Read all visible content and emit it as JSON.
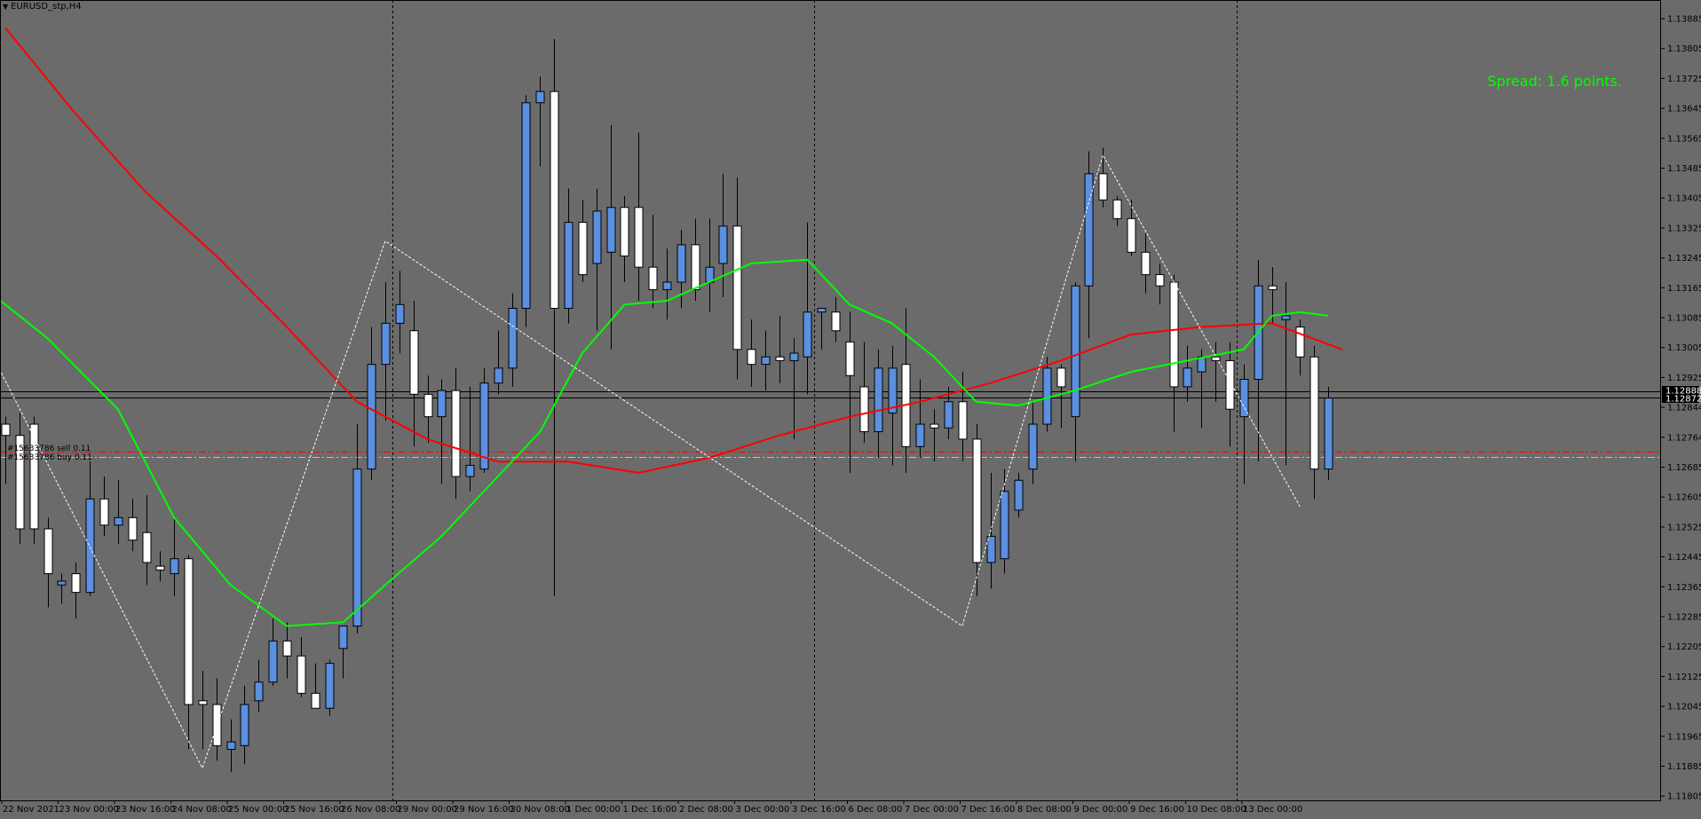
{
  "window": {
    "title": "EURUSD_stp,H4"
  },
  "indicator": {
    "spread_text": "Spread: 1.6 points."
  },
  "trade_labels": [
    {
      "text": "#15633786 sell 0.11"
    },
    {
      "text": "#15633786 buy 0.11"
    }
  ],
  "colors": {
    "background": "#6b6b6b",
    "bull_candle": "#5b8fe0",
    "bear_candle": "#ffffff",
    "ma_slow": "#ff0000",
    "ma_fast": "#00ff00",
    "zigzag": "#ffffff",
    "spread_text": "#00ff00",
    "price_badge": "#000000"
  },
  "icons": {
    "title_menu": "dropdown-triangle-icon"
  },
  "price_axis": {
    "labels": [
      "1.13885",
      "1.13805",
      "1.13725",
      "1.13645",
      "1.13565",
      "1.13485",
      "1.13405",
      "1.13325",
      "1.13245",
      "1.13165",
      "1.13085",
      "1.13005",
      "1.12925",
      "1.12844",
      "1.12764",
      "1.12685",
      "1.12605",
      "1.12525",
      "1.12445",
      "1.12365",
      "1.12285",
      "1.12205",
      "1.12125",
      "1.12045",
      "1.11965",
      "1.11885",
      "1.11805"
    ],
    "bid_price": "1.12888",
    "ask_price": "1.12872"
  },
  "time_axis": {
    "labels": [
      "22 Nov 2021",
      "23 Nov 00:00",
      "23 Nov 16:00",
      "24 Nov 08:00",
      "25 Nov 00:00",
      "25 Nov 16:00",
      "26 Nov 08:00",
      "29 Nov 00:00",
      "29 Nov 16:00",
      "30 Nov 08:00",
      "1 Dec 00:00",
      "1 Dec 16:00",
      "2 Dec 08:00",
      "3 Dec 00:00",
      "3 Dec 16:00",
      "6 Dec 08:00",
      "7 Dec 00:00",
      "7 Dec 16:00",
      "8 Dec 08:00",
      "9 Dec 00:00",
      "9 Dec 16:00",
      "10 Dec 08:00",
      "13 Dec 00:00"
    ]
  },
  "chart_data": {
    "type": "candlestick",
    "symbol": "EURUSD_stp",
    "timeframe": "H4",
    "candles": [
      {
        "o": 1.128,
        "h": 1.1282,
        "l": 1.1264,
        "c": 1.1277
      },
      {
        "o": 1.1277,
        "h": 1.1283,
        "l": 1.1248,
        "c": 1.1252
      },
      {
        "o": 1.128,
        "h": 1.1282,
        "l": 1.1248,
        "c": 1.1252
      },
      {
        "o": 1.1252,
        "h": 1.1255,
        "l": 1.1231,
        "c": 1.124
      },
      {
        "o": 1.1237,
        "h": 1.124,
        "l": 1.1232,
        "c": 1.1238
      },
      {
        "o": 1.124,
        "h": 1.1243,
        "l": 1.1228,
        "c": 1.1235
      },
      {
        "o": 1.1235,
        "h": 1.127,
        "l": 1.1234,
        "c": 1.126
      },
      {
        "o": 1.126,
        "h": 1.1266,
        "l": 1.125,
        "c": 1.1253
      },
      {
        "o": 1.1253,
        "h": 1.1265,
        "l": 1.1248,
        "c": 1.1255
      },
      {
        "o": 1.1255,
        "h": 1.126,
        "l": 1.1246,
        "c": 1.1249
      },
      {
        "o": 1.1251,
        "h": 1.1261,
        "l": 1.1237,
        "c": 1.1243
      },
      {
        "o": 1.1242,
        "h": 1.1246,
        "l": 1.1238,
        "c": 1.1241
      },
      {
        "o": 1.124,
        "h": 1.1255,
        "l": 1.1234,
        "c": 1.1244
      },
      {
        "o": 1.1244,
        "h": 1.1245,
        "l": 1.1193,
        "c": 1.1205
      },
      {
        "o": 1.1206,
        "h": 1.1214,
        "l": 1.1193,
        "c": 1.1205
      },
      {
        "o": 1.1205,
        "h": 1.1212,
        "l": 1.119,
        "c": 1.1194
      },
      {
        "o": 1.1193,
        "h": 1.1201,
        "l": 1.1187,
        "c": 1.1195
      },
      {
        "o": 1.1194,
        "h": 1.121,
        "l": 1.1189,
        "c": 1.1205
      },
      {
        "o": 1.1206,
        "h": 1.1217,
        "l": 1.1203,
        "c": 1.1211
      },
      {
        "o": 1.1211,
        "h": 1.1228,
        "l": 1.121,
        "c": 1.1222
      },
      {
        "o": 1.1222,
        "h": 1.1227,
        "l": 1.1212,
        "c": 1.1218
      },
      {
        "o": 1.1218,
        "h": 1.1223,
        "l": 1.1207,
        "c": 1.1208
      },
      {
        "o": 1.1208,
        "h": 1.1216,
        "l": 1.1204,
        "c": 1.1204
      },
      {
        "o": 1.1204,
        "h": 1.1217,
        "l": 1.1202,
        "c": 1.1216
      },
      {
        "o": 1.122,
        "h": 1.1226,
        "l": 1.1212,
        "c": 1.1226
      },
      {
        "o": 1.1226,
        "h": 1.128,
        "l": 1.1224,
        "c": 1.1268
      },
      {
        "o": 1.1268,
        "h": 1.1306,
        "l": 1.1265,
        "c": 1.1296
      },
      {
        "o": 1.1296,
        "h": 1.1318,
        "l": 1.1281,
        "c": 1.1307
      },
      {
        "o": 1.1307,
        "h": 1.1321,
        "l": 1.1299,
        "c": 1.1312
      },
      {
        "o": 1.1305,
        "h": 1.1313,
        "l": 1.1274,
        "c": 1.1288
      },
      {
        "o": 1.1288,
        "h": 1.1293,
        "l": 1.1275,
        "c": 1.1282
      },
      {
        "o": 1.1282,
        "h": 1.1292,
        "l": 1.1264,
        "c": 1.1289
      },
      {
        "o": 1.1289,
        "h": 1.1295,
        "l": 1.126,
        "c": 1.1266
      },
      {
        "o": 1.1266,
        "h": 1.129,
        "l": 1.1262,
        "c": 1.1269
      },
      {
        "o": 1.1268,
        "h": 1.1295,
        "l": 1.1267,
        "c": 1.1291
      },
      {
        "o": 1.1291,
        "h": 1.1305,
        "l": 1.1288,
        "c": 1.1295
      },
      {
        "o": 1.1295,
        "h": 1.1315,
        "l": 1.129,
        "c": 1.1311
      },
      {
        "o": 1.1311,
        "h": 1.1368,
        "l": 1.1306,
        "c": 1.1366
      },
      {
        "o": 1.1366,
        "h": 1.1373,
        "l": 1.1349,
        "c": 1.1369
      },
      {
        "o": 1.1369,
        "h": 1.1383,
        "l": 1.1234,
        "c": 1.1311
      },
      {
        "o": 1.1311,
        "h": 1.1343,
        "l": 1.1307,
        "c": 1.1334
      },
      {
        "o": 1.1334,
        "h": 1.134,
        "l": 1.1318,
        "c": 1.132
      },
      {
        "o": 1.1323,
        "h": 1.1343,
        "l": 1.1305,
        "c": 1.1337
      },
      {
        "o": 1.1326,
        "h": 1.136,
        "l": 1.13,
        "c": 1.1338
      },
      {
        "o": 1.1338,
        "h": 1.1341,
        "l": 1.1318,
        "c": 1.1325
      },
      {
        "o": 1.1338,
        "h": 1.1358,
        "l": 1.1313,
        "c": 1.1322
      },
      {
        "o": 1.1322,
        "h": 1.1336,
        "l": 1.1311,
        "c": 1.1316
      },
      {
        "o": 1.1316,
        "h": 1.1327,
        "l": 1.1308,
        "c": 1.1318
      },
      {
        "o": 1.1318,
        "h": 1.1332,
        "l": 1.1311,
        "c": 1.1328
      },
      {
        "o": 1.1328,
        "h": 1.1335,
        "l": 1.1313,
        "c": 1.1316
      },
      {
        "o": 1.1318,
        "h": 1.1335,
        "l": 1.131,
        "c": 1.1322
      },
      {
        "o": 1.1323,
        "h": 1.1347,
        "l": 1.1314,
        "c": 1.1333
      },
      {
        "o": 1.1333,
        "h": 1.1346,
        "l": 1.1292,
        "c": 1.13
      },
      {
        "o": 1.13,
        "h": 1.1308,
        "l": 1.129,
        "c": 1.1296
      },
      {
        "o": 1.1296,
        "h": 1.1305,
        "l": 1.1289,
        "c": 1.1298
      },
      {
        "o": 1.1298,
        "h": 1.1309,
        "l": 1.1291,
        "c": 1.1297
      },
      {
        "o": 1.1297,
        "h": 1.1303,
        "l": 1.1276,
        "c": 1.1299
      },
      {
        "o": 1.1298,
        "h": 1.1334,
        "l": 1.1288,
        "c": 1.131
      },
      {
        "o": 1.131,
        "h": 1.1311,
        "l": 1.13,
        "c": 1.1311
      },
      {
        "o": 1.131,
        "h": 1.1314,
        "l": 1.1302,
        "c": 1.1305
      },
      {
        "o": 1.1302,
        "h": 1.131,
        "l": 1.1267,
        "c": 1.1293
      },
      {
        "o": 1.129,
        "h": 1.1302,
        "l": 1.1275,
        "c": 1.1278
      },
      {
        "o": 1.1278,
        "h": 1.13,
        "l": 1.1271,
        "c": 1.1295
      },
      {
        "o": 1.1283,
        "h": 1.1301,
        "l": 1.1269,
        "c": 1.1295
      },
      {
        "o": 1.1296,
        "h": 1.1311,
        "l": 1.1267,
        "c": 1.1274
      },
      {
        "o": 1.1274,
        "h": 1.1292,
        "l": 1.1271,
        "c": 1.128
      },
      {
        "o": 1.128,
        "h": 1.1284,
        "l": 1.127,
        "c": 1.1279
      },
      {
        "o": 1.1279,
        "h": 1.129,
        "l": 1.1276,
        "c": 1.1286
      },
      {
        "o": 1.1286,
        "h": 1.1294,
        "l": 1.127,
        "c": 1.1276
      },
      {
        "o": 1.1276,
        "h": 1.128,
        "l": 1.1234,
        "c": 1.1243
      },
      {
        "o": 1.1243,
        "h": 1.1267,
        "l": 1.1236,
        "c": 1.125
      },
      {
        "o": 1.1244,
        "h": 1.1268,
        "l": 1.124,
        "c": 1.1262
      },
      {
        "o": 1.1257,
        "h": 1.1267,
        "l": 1.1255,
        "c": 1.1265
      },
      {
        "o": 1.1268,
        "h": 1.1286,
        "l": 1.1264,
        "c": 1.128
      },
      {
        "o": 1.128,
        "h": 1.1298,
        "l": 1.1278,
        "c": 1.1295
      },
      {
        "o": 1.1295,
        "h": 1.1296,
        "l": 1.1279,
        "c": 1.129
      },
      {
        "o": 1.1282,
        "h": 1.1318,
        "l": 1.127,
        "c": 1.1317
      },
      {
        "o": 1.1317,
        "h": 1.1353,
        "l": 1.1303,
        "c": 1.1347
      },
      {
        "o": 1.1347,
        "h": 1.1354,
        "l": 1.1338,
        "c": 1.134
      },
      {
        "o": 1.134,
        "h": 1.1341,
        "l": 1.1333,
        "c": 1.1335
      },
      {
        "o": 1.1335,
        "h": 1.134,
        "l": 1.1325,
        "c": 1.1326
      },
      {
        "o": 1.1326,
        "h": 1.1331,
        "l": 1.1315,
        "c": 1.132
      },
      {
        "o": 1.132,
        "h": 1.1323,
        "l": 1.1312,
        "c": 1.1317
      },
      {
        "o": 1.1318,
        "h": 1.132,
        "l": 1.1278,
        "c": 1.129
      },
      {
        "o": 1.129,
        "h": 1.1301,
        "l": 1.1286,
        "c": 1.1295
      },
      {
        "o": 1.1294,
        "h": 1.13,
        "l": 1.1279,
        "c": 1.1298
      },
      {
        "o": 1.1298,
        "h": 1.1302,
        "l": 1.1286,
        "c": 1.1297
      },
      {
        "o": 1.1297,
        "h": 1.1302,
        "l": 1.1274,
        "c": 1.1284
      },
      {
        "o": 1.1282,
        "h": 1.1296,
        "l": 1.1264,
        "c": 1.1292
      },
      {
        "o": 1.1292,
        "h": 1.1324,
        "l": 1.127,
        "c": 1.1317
      },
      {
        "o": 1.1317,
        "h": 1.1322,
        "l": 1.1307,
        "c": 1.1316
      },
      {
        "o": 1.1308,
        "h": 1.1318,
        "l": 1.1269,
        "c": 1.1309
      },
      {
        "o": 1.1306,
        "h": 1.1308,
        "l": 1.1293,
        "c": 1.1298
      },
      {
        "o": 1.1298,
        "h": 1.1301,
        "l": 1.126,
        "c": 1.1268
      },
      {
        "o": 1.1268,
        "h": 1.129,
        "l": 1.1265,
        "c": 1.1287
      }
    ],
    "ma_slow": [
      {
        "i": 0,
        "v": 1.1386
      },
      {
        "i": 5,
        "v": 1.1363
      },
      {
        "i": 10,
        "v": 1.1342
      },
      {
        "i": 15,
        "v": 1.1325
      },
      {
        "i": 20,
        "v": 1.1306
      },
      {
        "i": 25,
        "v": 1.1286
      },
      {
        "i": 30,
        "v": 1.1276
      },
      {
        "i": 35,
        "v": 1.127
      },
      {
        "i": 40,
        "v": 1.127
      },
      {
        "i": 45,
        "v": 1.1267
      },
      {
        "i": 50,
        "v": 1.1271
      },
      {
        "i": 55,
        "v": 1.1277
      },
      {
        "i": 60,
        "v": 1.1282
      },
      {
        "i": 65,
        "v": 1.1286
      },
      {
        "i": 70,
        "v": 1.1291
      },
      {
        "i": 75,
        "v": 1.1297
      },
      {
        "i": 80,
        "v": 1.1304
      },
      {
        "i": 85,
        "v": 1.1306
      },
      {
        "i": 90,
        "v": 1.1307
      },
      {
        "i": 95,
        "v": 1.13
      }
    ],
    "ma_fast": [
      {
        "i": -1,
        "v": 1.1315
      },
      {
        "i": 3,
        "v": 1.1303
      },
      {
        "i": 8,
        "v": 1.1284
      },
      {
        "i": 12,
        "v": 1.1255
      },
      {
        "i": 16,
        "v": 1.1237
      },
      {
        "i": 20,
        "v": 1.1226
      },
      {
        "i": 24,
        "v": 1.1227
      },
      {
        "i": 27,
        "v": 1.1237
      },
      {
        "i": 31,
        "v": 1.125
      },
      {
        "i": 35,
        "v": 1.1266
      },
      {
        "i": 38,
        "v": 1.1278
      },
      {
        "i": 41,
        "v": 1.1299
      },
      {
        "i": 44,
        "v": 1.1312
      },
      {
        "i": 47,
        "v": 1.1313
      },
      {
        "i": 50,
        "v": 1.1318
      },
      {
        "i": 53,
        "v": 1.1323
      },
      {
        "i": 57,
        "v": 1.1324
      },
      {
        "i": 60,
        "v": 1.1312
      },
      {
        "i": 63,
        "v": 1.1307
      },
      {
        "i": 66,
        "v": 1.1298
      },
      {
        "i": 69,
        "v": 1.1286
      },
      {
        "i": 72,
        "v": 1.1285
      },
      {
        "i": 76,
        "v": 1.1289
      },
      {
        "i": 80,
        "v": 1.1294
      },
      {
        "i": 84,
        "v": 1.1297
      },
      {
        "i": 88,
        "v": 1.13
      },
      {
        "i": 90,
        "v": 1.1309
      },
      {
        "i": 92,
        "v": 1.131
      },
      {
        "i": 94,
        "v": 1.1309
      }
    ],
    "zigzag": [
      {
        "i": -1,
        "v": 1.1299
      },
      {
        "i": 14,
        "v": 1.1188
      },
      {
        "i": 27,
        "v": 1.1329
      },
      {
        "i": 68,
        "v": 1.1226
      },
      {
        "i": 78,
        "v": 1.1352
      },
      {
        "i": 92,
        "v": 1.1258
      }
    ],
    "horizontal_lines": [
      {
        "price": 1.12888,
        "style": "solid",
        "color": "#000000"
      },
      {
        "price": 1.12872,
        "style": "solid",
        "color": "#000000"
      },
      {
        "price": 1.12727,
        "style": "dashdot",
        "color": "#ff0000"
      },
      {
        "price": 1.12713,
        "style": "dashdot",
        "color": "#c0c0c0"
      }
    ],
    "period_separators_bar_index": [
      27,
      57,
      87
    ]
  }
}
